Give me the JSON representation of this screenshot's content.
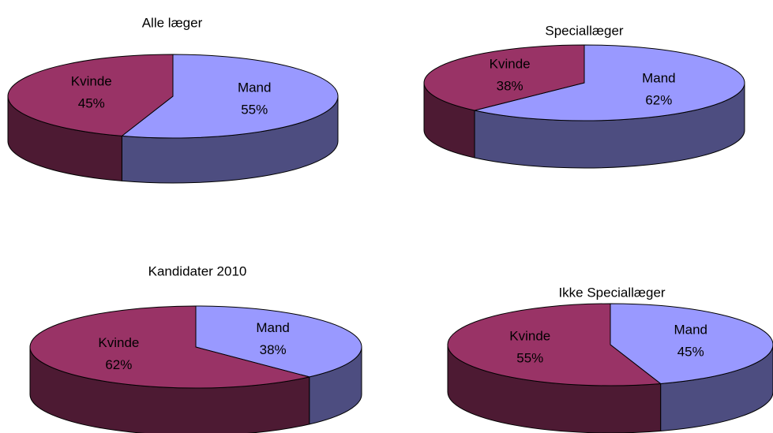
{
  "chart_data": [
    {
      "type": "pie",
      "title": "Alle læger",
      "categories": [
        "Mand",
        "Kvinde"
      ],
      "values": [
        55,
        45
      ],
      "value_labels": [
        "55%",
        "45%"
      ],
      "colors": [
        "#9999ff",
        "#993366"
      ]
    },
    {
      "type": "pie",
      "title": "Speciallæger",
      "categories": [
        "Mand",
        "Kvinde"
      ],
      "values": [
        62,
        38
      ],
      "value_labels": [
        "62%",
        "38%"
      ],
      "colors": [
        "#9999ff",
        "#993366"
      ]
    },
    {
      "type": "pie",
      "title": "Kandidater 2010",
      "categories": [
        "Mand",
        "Kvinde"
      ],
      "values": [
        38,
        62
      ],
      "value_labels": [
        "38%",
        "62%"
      ],
      "colors": [
        "#9999ff",
        "#993366"
      ]
    },
    {
      "type": "pie",
      "title": "Ikke Speciallæger",
      "categories": [
        "Mand",
        "Kvinde"
      ],
      "values": [
        45,
        55
      ],
      "value_labels": [
        "45%",
        "55%"
      ],
      "colors": [
        "#9999ff",
        "#993366"
      ]
    }
  ]
}
